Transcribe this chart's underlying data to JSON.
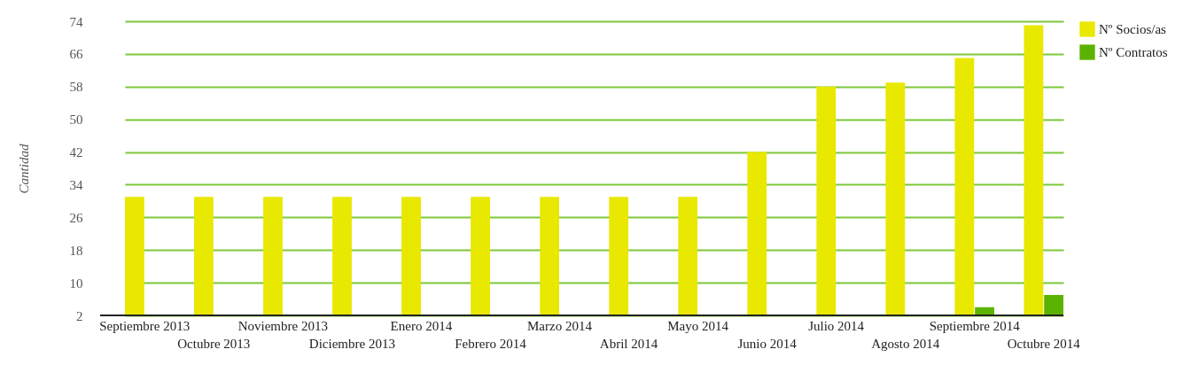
{
  "chart_data": {
    "type": "bar",
    "ylabel": "Cantidad",
    "categories": [
      "Septiembre 2013",
      "Octubre 2013",
      "Noviembre 2013",
      "Diciembre 2013",
      "Enero 2014",
      "Febrero 2014",
      "Marzo 2014",
      "Abril 2014",
      "Mayo 2014",
      "Junio 2014",
      "Julio 2014",
      "Agosto 2014",
      "Septiembre 2014",
      "Octubre 2014"
    ],
    "series": [
      {
        "name": "Nº Socios/as",
        "color": "#e8e800",
        "values": [
          31,
          31,
          31,
          31,
          31,
          31,
          31,
          31,
          31,
          42,
          58,
          59,
          65,
          73
        ]
      },
      {
        "name": "Nº Contratos",
        "color": "#5cb200",
        "values": [
          null,
          null,
          null,
          null,
          null,
          null,
          null,
          null,
          null,
          null,
          null,
          null,
          4,
          7
        ]
      }
    ],
    "ylim": [
      2,
      74
    ],
    "yticks": [
      2,
      10,
      18,
      26,
      34,
      42,
      50,
      58,
      66,
      74
    ],
    "grid": "y",
    "legend": "top right"
  }
}
